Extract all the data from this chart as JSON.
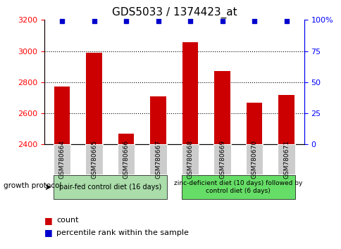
{
  "title": "GDS5033 / 1374423_at",
  "samples": [
    "GSM780664",
    "GSM780665",
    "GSM780666",
    "GSM780667",
    "GSM780668",
    "GSM780669",
    "GSM780670",
    "GSM780671"
  ],
  "counts": [
    2770,
    2990,
    2470,
    2710,
    3055,
    2870,
    2670,
    2720
  ],
  "percentile_y": 99,
  "ylim_left": [
    2400,
    3200
  ],
  "ylim_right": [
    0,
    100
  ],
  "yticks_left": [
    2400,
    2600,
    2800,
    3000,
    3200
  ],
  "yticks_right": [
    0,
    25,
    50,
    75,
    100
  ],
  "bar_color": "#cc0000",
  "percentile_color": "#0000cc",
  "group1_label": "pair-fed control diet (16 days)",
  "group2_label": "zinc-deficient diet (10 days) followed by\ncontrol diet (6 days)",
  "group1_indices": [
    0,
    1,
    2,
    3
  ],
  "group2_indices": [
    4,
    5,
    6,
    7
  ],
  "group1_color": "#aaddaa",
  "group2_color": "#66dd66",
  "tick_bg_color": "#cccccc",
  "growth_protocol_label": "growth protocol",
  "legend_count_label": "count",
  "legend_percentile_label": "percentile rank within the sample",
  "title_fontsize": 11,
  "tick_fontsize": 8,
  "legend_fontsize": 8,
  "grid_lines": [
    2600,
    2800,
    3000
  ],
  "bar_width": 0.5,
  "xlim": [
    -0.55,
    7.55
  ]
}
